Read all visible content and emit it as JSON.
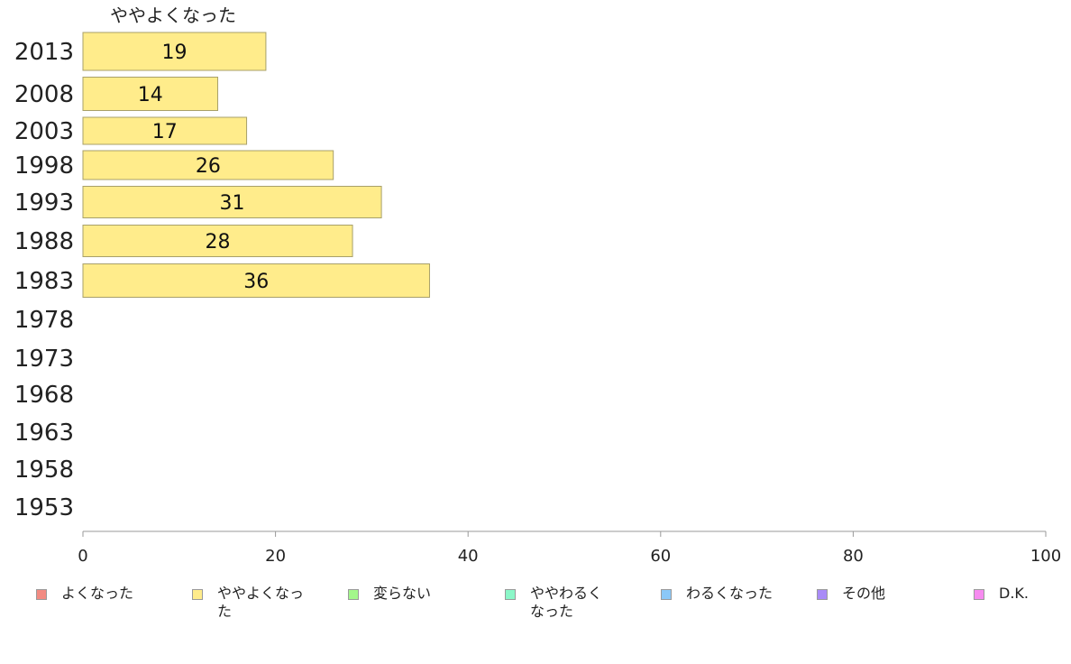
{
  "chart_data": {
    "type": "bar",
    "orientation": "horizontal",
    "stacked": true,
    "series_header": "ややよくなった",
    "categories": [
      "2013",
      "2008",
      "2003",
      "1998",
      "1993",
      "1988",
      "1983",
      "1978",
      "1973",
      "1968",
      "1963",
      "1958",
      "1953"
    ],
    "series": [
      {
        "name": "ややよくなった",
        "color": "#ffec8b",
        "values": [
          19,
          14,
          17,
          26,
          31,
          28,
          36,
          null,
          null,
          null,
          null,
          null,
          null
        ]
      }
    ],
    "data_labels": [
      "19",
      "14",
      "17",
      "26",
      "31",
      "28",
      "36"
    ],
    "xlim": [
      0,
      100
    ],
    "x_ticks": [
      "0",
      "20",
      "40",
      "60",
      "80",
      "100"
    ],
    "grid": false,
    "legend_position": "bottom"
  },
  "legend": {
    "items": [
      {
        "label": "よくなった",
        "color": "#f28b82"
      },
      {
        "label": "ややよくなった",
        "color": "#ffec8b"
      },
      {
        "label": "変らない",
        "color": "#a3f78b"
      },
      {
        "label": "ややわるく\nなった",
        "color": "#8bf7c8"
      },
      {
        "label": "わるくなった",
        "color": "#8bc8f7"
      },
      {
        "label": "その他",
        "color": "#a98bf7"
      },
      {
        "label": "D.K.",
        "color": "#f78bf0"
      }
    ]
  }
}
